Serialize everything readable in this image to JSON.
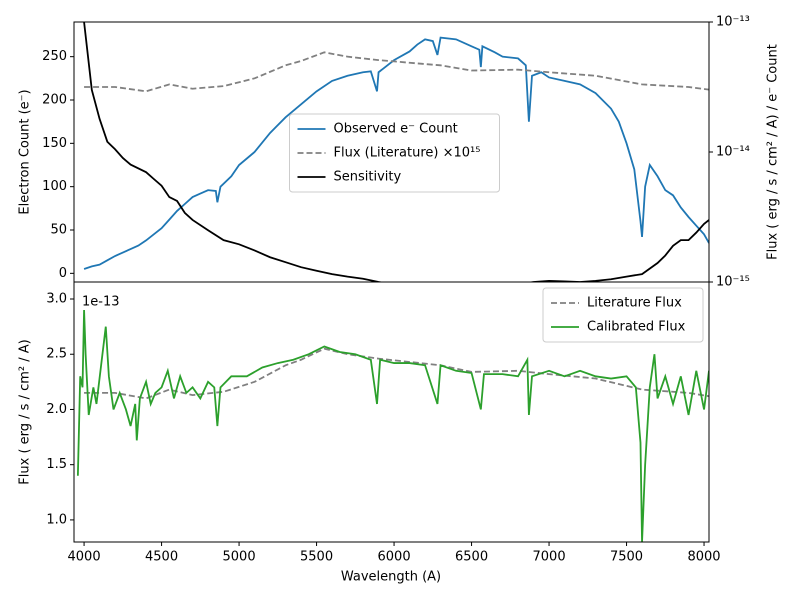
{
  "chart_data": [
    {
      "type": "line",
      "ylabel": "Electron Count (e⁻)",
      "y2label": "Flux ( erg / s / cm² / A) / e⁻ Count",
      "xlim": [
        3935,
        8032
      ],
      "ylim": [
        -10,
        290
      ],
      "yticks": [
        0,
        50,
        100,
        150,
        200,
        250
      ],
      "y2lim": [
        1e-15,
        1e-13
      ],
      "y2scale": "log",
      "y2ticks": [
        {
          "value": 1e-15,
          "label": "10⁻¹⁵"
        },
        {
          "value": 1e-14,
          "label": "10⁻¹⁴"
        },
        {
          "value": 1e-13,
          "label": "10⁻¹³"
        }
      ],
      "legend": "center",
      "series": [
        {
          "name": "Observed e⁻ Count",
          "color": "#1f77b4",
          "style": "solid",
          "x": [
            4000,
            4050,
            4100,
            4150,
            4200,
            4250,
            4300,
            4350,
            4400,
            4450,
            4500,
            4550,
            4600,
            4650,
            4700,
            4750,
            4800,
            4850,
            4860,
            4880,
            4950,
            5000,
            5100,
            5200,
            5300,
            5400,
            5500,
            5600,
            5700,
            5800,
            5850,
            5890,
            5900,
            6000,
            6100,
            6150,
            6200,
            6250,
            6280,
            6300,
            6400,
            6500,
            6550,
            6560,
            6570,
            6650,
            6700,
            6800,
            6850,
            6870,
            6890,
            6950,
            7000,
            7100,
            7200,
            7300,
            7400,
            7450,
            7500,
            7550,
            7590,
            7600,
            7620,
            7650,
            7700,
            7750,
            7800,
            7850,
            7900,
            7950,
            8000,
            8032
          ],
          "values": [
            5,
            8,
            10,
            15,
            20,
            24,
            28,
            32,
            38,
            45,
            52,
            62,
            72,
            80,
            88,
            92,
            96,
            95,
            82,
            100,
            112,
            125,
            140,
            162,
            180,
            195,
            210,
            222,
            228,
            232,
            233,
            210,
            232,
            246,
            256,
            264,
            270,
            268,
            252,
            272,
            270,
            262,
            258,
            238,
            262,
            255,
            250,
            248,
            240,
            175,
            228,
            232,
            226,
            222,
            218,
            208,
            190,
            175,
            150,
            120,
            60,
            42,
            100,
            125,
            112,
            96,
            90,
            76,
            65,
            55,
            45,
            35
          ]
        },
        {
          "name": "Flux (Literature) ×10¹⁵",
          "color": "#808080",
          "style": "dashed",
          "x": [
            4000,
            4200,
            4400,
            4550,
            4700,
            4900,
            5100,
            5300,
            5400,
            5550,
            5700,
            5900,
            6100,
            6300,
            6500,
            6800,
            7000,
            7300,
            7600,
            7900,
            8032
          ],
          "values": [
            215,
            215,
            210,
            218,
            213,
            216,
            225,
            240,
            245,
            255,
            250,
            246,
            243,
            240,
            234,
            235,
            232,
            228,
            218,
            215,
            212
          ]
        },
        {
          "name": "Sensitivity",
          "color": "#000000",
          "style": "solid",
          "axis": "y2",
          "x": [
            4000,
            4050,
            4100,
            4150,
            4200,
            4250,
            4300,
            4400,
            4450,
            4500,
            4550,
            4600,
            4650,
            4700,
            4800,
            4900,
            5000,
            5100,
            5200,
            5300,
            5400,
            5500,
            5600,
            5700,
            5800,
            5900,
            6000,
            6200,
            6500,
            6800,
            6900,
            7000,
            7100,
            7200,
            7300,
            7400,
            7500,
            7600,
            7700,
            7750,
            7800,
            7850,
            7900,
            7950,
            8000,
            8032
          ],
          "values": [
            1e-13,
            3e-14,
            1.8e-14,
            1.2e-14,
            1.05e-14,
            9e-15,
            8e-15,
            7e-15,
            6.2e-15,
            5.5e-15,
            4.5e-15,
            4.2e-15,
            3.4e-15,
            3e-15,
            2.5e-15,
            2.1e-15,
            1.95e-15,
            1.75e-15,
            1.55e-15,
            1.42e-15,
            1.3e-15,
            1.22e-15,
            1.15e-15,
            1.1e-15,
            1.06e-15,
            1e-15,
            9.6e-16,
            9.3e-16,
            9.3e-16,
            9.6e-16,
            1e-15,
            1.02e-15,
            1.01e-15,
            1e-15,
            1.02e-15,
            1.05e-15,
            1.1e-15,
            1.15e-15,
            1.4e-15,
            1.6e-15,
            1.9e-15,
            2.1e-15,
            2.1e-15,
            2.4e-15,
            2.8e-15,
            3e-15
          ]
        }
      ]
    },
    {
      "type": "line",
      "xlabel": "Wavelength (A)",
      "ylabel": "Flux ( erg / s / cm² / A)",
      "offset_label": "1e-13",
      "xlim": [
        3935,
        8032
      ],
      "xticks": [
        4000,
        4500,
        5000,
        5500,
        6000,
        6500,
        7000,
        7500,
        8000
      ],
      "ylim": [
        0.8,
        3.154
      ],
      "yticks": [
        {
          "value": 1.0,
          "label": "1.0"
        },
        1.5,
        {
          "value": 2.0,
          "label": "2.0"
        },
        2.5,
        {
          "value": 3.0,
          "label": "3.0"
        }
      ],
      "legend": "upper right",
      "series": [
        {
          "name": "Literature Flux",
          "color": "#808080",
          "style": "dashed",
          "x": [
            4000,
            4200,
            4400,
            4550,
            4700,
            4900,
            5100,
            5300,
            5400,
            5550,
            5700,
            5900,
            6100,
            6300,
            6500,
            6800,
            7000,
            7300,
            7600,
            7900,
            8032
          ],
          "values": [
            2.15,
            2.15,
            2.1,
            2.18,
            2.13,
            2.16,
            2.25,
            2.4,
            2.45,
            2.55,
            2.5,
            2.46,
            2.43,
            2.4,
            2.34,
            2.35,
            2.32,
            2.28,
            2.18,
            2.15,
            2.12
          ]
        },
        {
          "name": "Calibrated Flux",
          "color": "#2ca02c",
          "style": "solid",
          "x": [
            3960,
            3975,
            3990,
            4000,
            4010,
            4030,
            4060,
            4080,
            4110,
            4140,
            4160,
            4190,
            4230,
            4270,
            4300,
            4330,
            4340,
            4360,
            4400,
            4430,
            4460,
            4500,
            4540,
            4580,
            4620,
            4660,
            4700,
            4750,
            4800,
            4840,
            4860,
            4880,
            4950,
            5050,
            5150,
            5250,
            5350,
            5450,
            5550,
            5650,
            5750,
            5850,
            5890,
            5910,
            6000,
            6100,
            6200,
            6280,
            6300,
            6400,
            6500,
            6560,
            6580,
            6700,
            6800,
            6860,
            6870,
            6890,
            7000,
            7100,
            7200,
            7300,
            7400,
            7500,
            7560,
            7590,
            7600,
            7620,
            7650,
            7680,
            7700,
            7750,
            7800,
            7850,
            7900,
            7950,
            8000,
            8032
          ],
          "values": [
            1.4,
            2.3,
            2.2,
            2.9,
            2.5,
            1.95,
            2.2,
            2.05,
            2.4,
            2.75,
            2.3,
            2.0,
            2.15,
            2.0,
            1.85,
            2.05,
            1.72,
            2.1,
            2.25,
            2.05,
            2.15,
            2.2,
            2.35,
            2.1,
            2.3,
            2.15,
            2.2,
            2.1,
            2.25,
            2.2,
            1.85,
            2.2,
            2.3,
            2.3,
            2.38,
            2.42,
            2.45,
            2.5,
            2.57,
            2.52,
            2.5,
            2.45,
            2.05,
            2.45,
            2.42,
            2.42,
            2.4,
            2.05,
            2.4,
            2.35,
            2.33,
            2.0,
            2.32,
            2.32,
            2.3,
            2.45,
            1.95,
            2.3,
            2.35,
            2.3,
            2.35,
            2.3,
            2.28,
            2.3,
            2.2,
            1.7,
            0.8,
            1.5,
            2.2,
            2.5,
            2.1,
            2.3,
            2.05,
            2.3,
            1.95,
            2.35,
            2.0,
            2.35
          ]
        }
      ]
    }
  ]
}
